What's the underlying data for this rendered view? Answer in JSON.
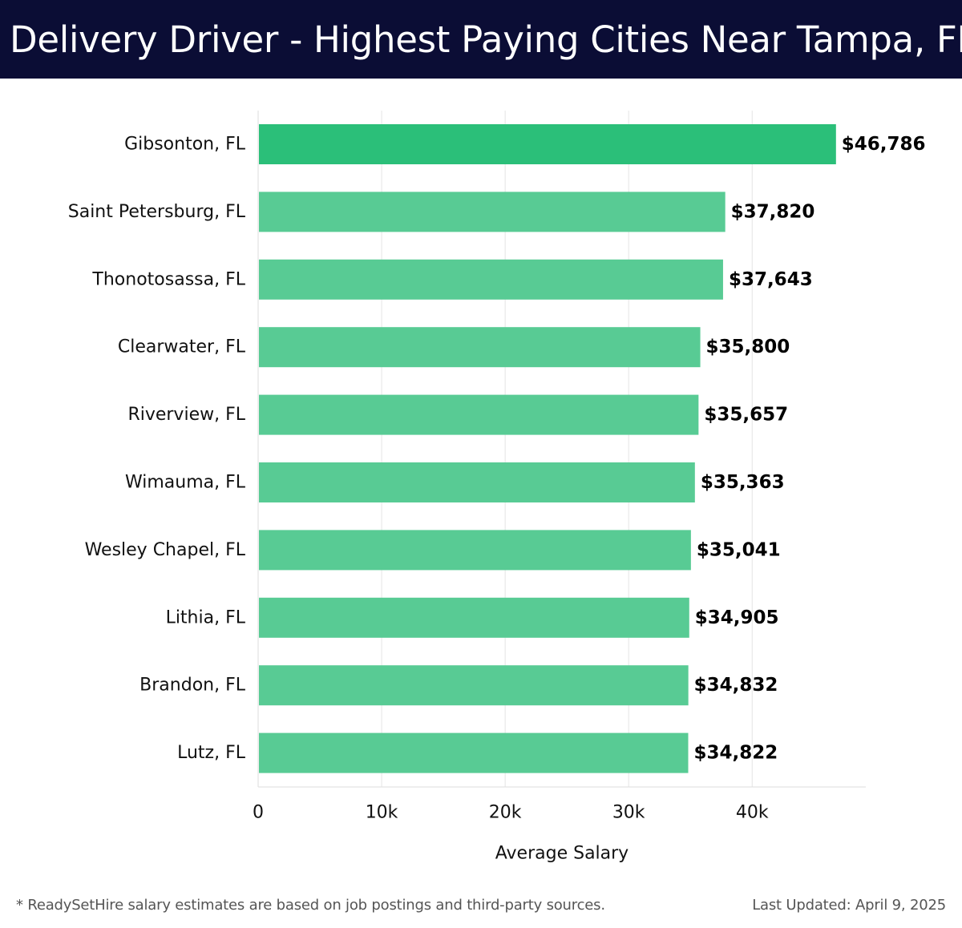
{
  "header": {
    "title": "Delivery Driver - Highest Paying Cities Near Tampa, FL"
  },
  "chart_data": {
    "type": "bar",
    "orientation": "horizontal",
    "title": "Delivery Driver - Highest Paying Cities Near Tampa, FL",
    "xlabel": "Average Salary",
    "ylabel": "",
    "categories": [
      "Gibsonton, FL",
      "Saint Petersburg, FL",
      "Thonotosassa, FL",
      "Clearwater, FL",
      "Riverview, FL",
      "Wimauma, FL",
      "Wesley Chapel, FL",
      "Lithia, FL",
      "Brandon, FL",
      "Lutz, FL"
    ],
    "values": [
      46786,
      37820,
      37643,
      35800,
      35657,
      35363,
      35041,
      34905,
      34832,
      34822
    ],
    "value_labels": [
      "$46,786",
      "$37,820",
      "$37,643",
      "$35,800",
      "$35,657",
      "$35,363",
      "$35,041",
      "$34,905",
      "$34,832",
      "$34,822"
    ],
    "xticks": [
      0,
      10000,
      20000,
      30000,
      40000
    ],
    "xtick_labels": [
      "0",
      "10k",
      "20k",
      "30k",
      "40k"
    ],
    "xlim": [
      0,
      49200
    ],
    "grid": true,
    "colors": {
      "highlight": "#2bbf79",
      "bar": "#58cb94",
      "header_bg": "#0b0d35",
      "grid": "#e5e5e5"
    }
  },
  "footer": {
    "note": "* ReadySetHire salary estimates are based on job postings and third-party sources.",
    "updated": "Last Updated: April 9, 2025"
  }
}
